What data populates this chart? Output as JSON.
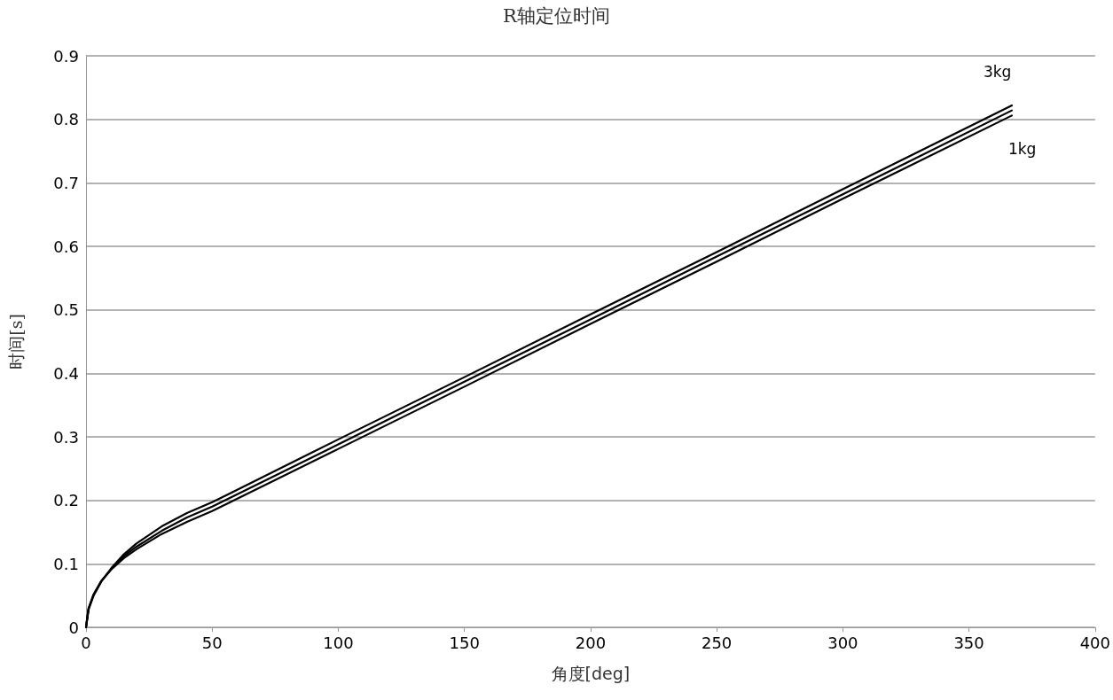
{
  "chart_data": {
    "type": "line",
    "title": "R轴定位时间",
    "xlabel": "角度[deg]",
    "ylabel": "时间[s]",
    "x": [
      0,
      1,
      3,
      6,
      10,
      15,
      20,
      30,
      40,
      50,
      100,
      150,
      200,
      250,
      300,
      367
    ],
    "series": [
      {
        "name": "3kg",
        "color": "#000000",
        "values": [
          0,
          0.028,
          0.05,
          0.072,
          0.093,
          0.115,
          0.132,
          0.159,
          0.18,
          0.197,
          0.296,
          0.394,
          0.493,
          0.591,
          0.69,
          0.822
        ]
      },
      {
        "color": "#000000",
        "values": [
          0,
          0.029,
          0.051,
          0.072,
          0.092,
          0.112,
          0.127,
          0.152,
          0.173,
          0.19,
          0.288,
          0.387,
          0.485,
          0.584,
          0.682,
          0.814
        ]
      },
      {
        "name": "1kg",
        "color": "#000000",
        "values": [
          0,
          0.03,
          0.052,
          0.073,
          0.091,
          0.109,
          0.123,
          0.147,
          0.166,
          0.183,
          0.281,
          0.379,
          0.478,
          0.576,
          0.675,
          0.806
        ]
      }
    ],
    "xlim": [
      0,
      400
    ],
    "xticks": [
      0,
      50,
      100,
      150,
      200,
      250,
      300,
      350,
      400
    ],
    "ylim": [
      0,
      0.9
    ],
    "yticks": [
      0,
      0.1,
      0.2,
      0.3,
      0.4,
      0.5,
      0.6,
      0.7,
      0.8,
      0.9
    ],
    "grid": "y",
    "legend": false,
    "marker": "none",
    "line_style": "solid"
  }
}
